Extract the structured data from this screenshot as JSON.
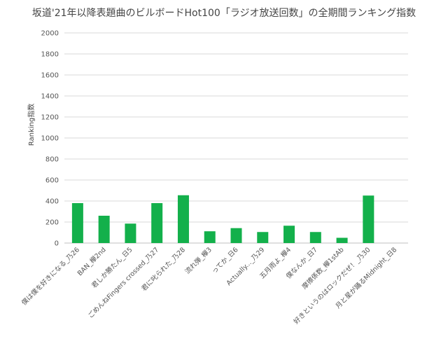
{
  "chart_data": {
    "type": "bar",
    "title": "坂道'21年以降表題曲のビルボードHot100「ラジオ放送回数」の全期間ランキング指数",
    "ylabel": "Ranking指数",
    "xlabel": "",
    "ylim": [
      0,
      2000
    ],
    "yticks": [
      0,
      200,
      400,
      600,
      800,
      1000,
      1200,
      1400,
      1600,
      1800,
      2000
    ],
    "grid": true,
    "legend": "none",
    "bar_color": "#13b04b",
    "categories": [
      "僕は僕を好きになる_乃26",
      "BAN_欅2nd",
      "君しか勝たん_日5",
      "ごめんねFingers crossed_乃27",
      "君に叱られた_乃28",
      "流れ弾_欅3",
      "ってか_日6",
      "Actually..._乃29",
      "五月雨よ_欅4",
      "僕なんか_日7",
      "摩擦係数_欅1stAb",
      "好きというのはロックだぜ！_乃30",
      "月と星が踊るMidnight_日8"
    ],
    "values": [
      380,
      260,
      185,
      380,
      455,
      112,
      142,
      105,
      165,
      105,
      50,
      452,
      0
    ]
  }
}
